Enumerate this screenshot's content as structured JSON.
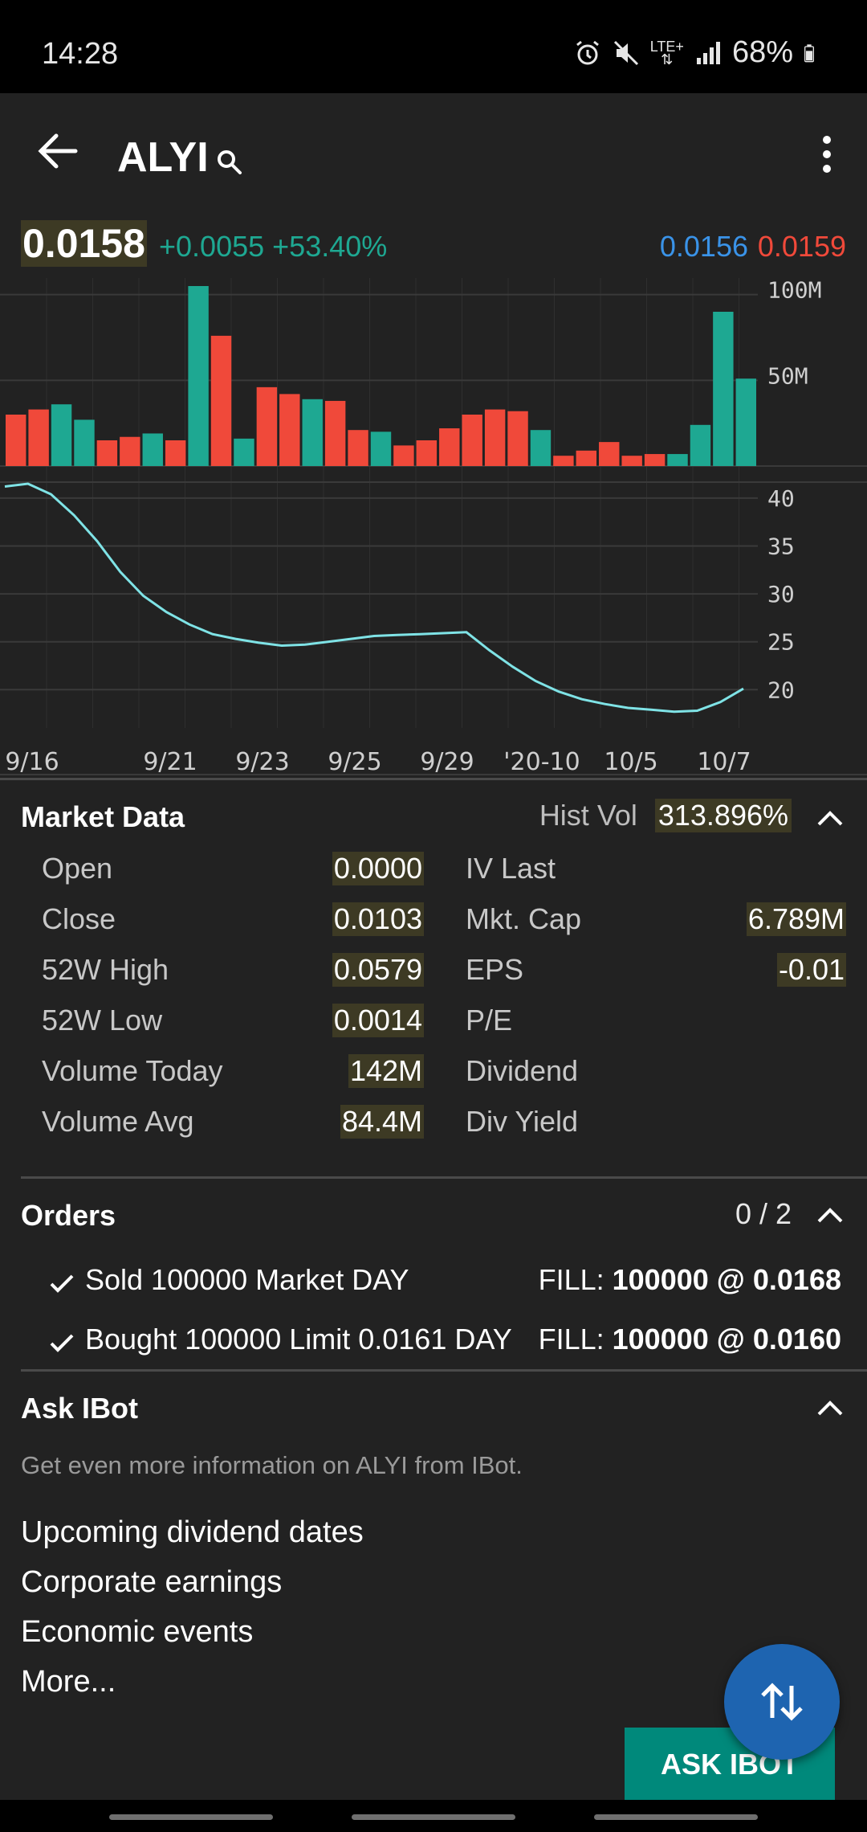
{
  "status": {
    "time": "14:28",
    "battery": "68%",
    "network": "LTE+"
  },
  "header": {
    "symbol": "ALYI"
  },
  "quote": {
    "last": "0.0158",
    "change": "+0.0055",
    "change_pct": "+53.40%",
    "bid": "0.0156",
    "ask": "0.0159"
  },
  "colors": {
    "up": "#1ea892",
    "down": "#f0493a",
    "bid": "#3a93e8",
    "price_line": "#7fe3e6",
    "highlight_bg": "#3d3a24",
    "button": "#00897b",
    "fab": "#1e64b0"
  },
  "chart_data": {
    "type": "bar+line",
    "volume": {
      "unit": "M",
      "y_ticks": [
        "100M",
        "50M"
      ],
      "values": [
        30,
        33,
        36,
        27,
        15,
        17,
        19,
        15,
        105,
        76,
        16,
        46,
        42,
        39,
        38,
        21,
        20,
        12,
        15,
        22,
        30,
        33,
        32,
        21,
        6,
        9,
        14,
        6,
        7,
        7,
        24,
        90,
        51
      ],
      "directions": [
        "down",
        "down",
        "up",
        "up",
        "down",
        "down",
        "up",
        "down",
        "up",
        "down",
        "up",
        "down",
        "down",
        "up",
        "down",
        "down",
        "up",
        "down",
        "down",
        "down",
        "down",
        "down",
        "down",
        "up",
        "down",
        "down",
        "down",
        "down",
        "down",
        "up",
        "up",
        "up",
        "up"
      ]
    },
    "price": {
      "y_ticks": [
        "40",
        "35",
        "30",
        "25",
        "20"
      ],
      "ylim": [
        16,
        42
      ],
      "values": [
        41.2,
        41.5,
        40.4,
        38.2,
        35.5,
        32.3,
        29.8,
        28.1,
        26.8,
        25.8,
        25.3,
        24.9,
        24.6,
        24.7,
        25.0,
        25.3,
        25.6,
        25.7,
        25.8,
        25.9,
        26.0,
        24.1,
        22.4,
        20.9,
        19.8,
        19.0,
        18.5,
        18.1,
        17.9,
        17.7,
        17.8,
        18.7,
        20.1
      ]
    },
    "x_ticks": [
      "9/16",
      "9/21",
      "9/23",
      "9/25",
      "9/29",
      "'20-10",
      "10/5",
      "10/7"
    ]
  },
  "market_data": {
    "title": "Market Data",
    "hist_vol_label": "Hist Vol",
    "hist_vol_value": "313.896%",
    "rows": [
      {
        "l1": "Open",
        "v1": "0.0000",
        "l2": "IV Last",
        "v2": ""
      },
      {
        "l1": "Close",
        "v1": "0.0103",
        "l2": "Mkt. Cap",
        "v2": "6.789M"
      },
      {
        "l1": "52W High",
        "v1": "0.0579",
        "l2": "EPS",
        "v2": "-0.01"
      },
      {
        "l1": "52W Low",
        "v1": "0.0014",
        "l2": "P/E",
        "v2": ""
      },
      {
        "l1": "Volume Today",
        "v1": "142M",
        "l2": "Dividend",
        "v2": ""
      },
      {
        "l1": "Volume Avg",
        "v1": "84.4M",
        "l2": "Div Yield",
        "v2": ""
      }
    ]
  },
  "orders": {
    "title": "Orders",
    "count": "0 / 2",
    "items": [
      {
        "desc": "Sold 100000 Market DAY",
        "fill_label": "FILL:",
        "fill_value": "100000 @ 0.0168"
      },
      {
        "desc": "Bought 100000 Limit 0.0161 DAY",
        "fill_label": "FILL:",
        "fill_value": "100000 @ 0.0160"
      }
    ]
  },
  "ibot": {
    "title": "Ask IBot",
    "subtitle": "Get even more information on ALYI from IBot.",
    "links": [
      "Upcoming dividend dates",
      "Corporate earnings",
      "Economic events",
      "More..."
    ],
    "button_label": "ASK IBOT"
  },
  "icons": {
    "back": "arrow-left-icon",
    "search": "search-icon",
    "menu": "more-vert-icon",
    "collapse": "chevron-up-icon",
    "check": "check-icon",
    "trade": "swap-vert-icon"
  }
}
